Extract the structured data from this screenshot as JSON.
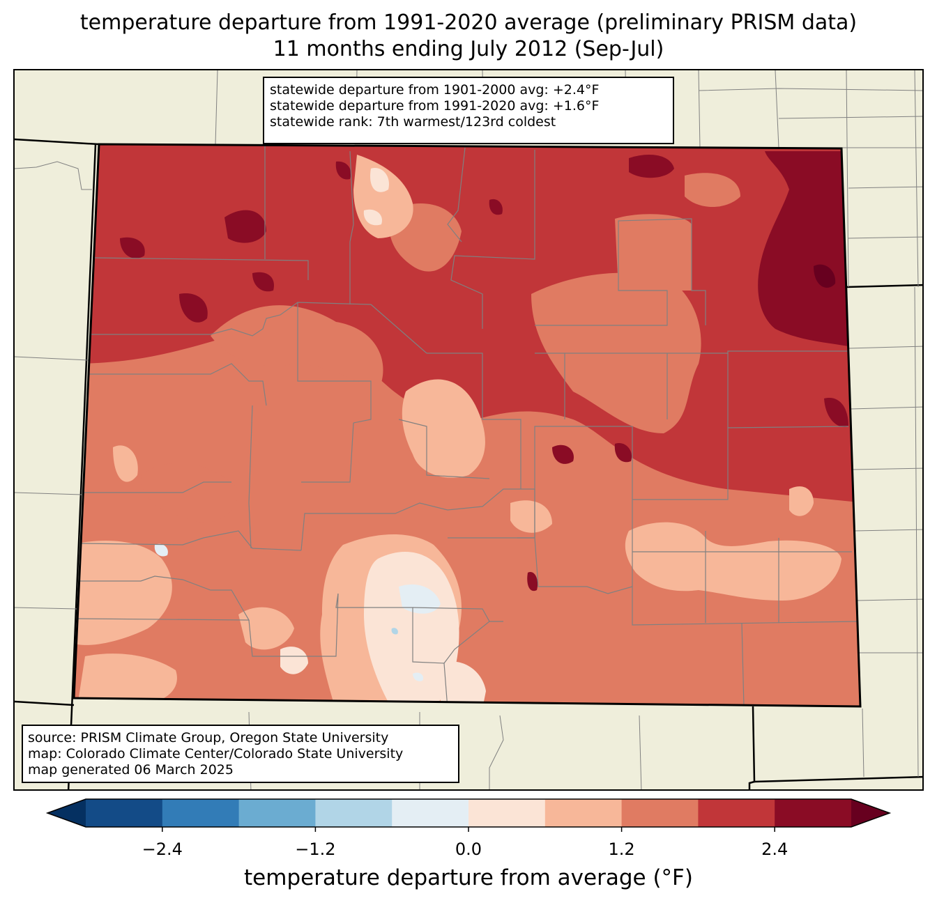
{
  "title": {
    "line1": "temperature departure from 1991-2020 average (preliminary PRISM data)",
    "line2": "11 months ending July 2012 (Sep-Jul)"
  },
  "stats": {
    "line1": "statewide departure from 1901-2000 avg: +2.4°F",
    "line2": "statewide departure from 1991-2020 avg: +1.6°F",
    "line3": "statewide rank: 7th warmest/123rd coldest"
  },
  "source": {
    "line1": "source: PRISM Climate Group, Oregon State University",
    "line2": "map: Colorado Climate Center/Colorado State University",
    "line3": "map generated 06 March 2025"
  },
  "colorbar": {
    "label": "temperature departure from average (°F)",
    "ticks": [
      "−2.4",
      "−1.2",
      "0.0",
      "1.2",
      "2.4"
    ],
    "tick_values": [
      -2.4,
      -1.2,
      0.0,
      1.2,
      2.4
    ],
    "bounds": [
      -3.0,
      -2.4,
      -1.8,
      -1.2,
      -0.6,
      0.0,
      0.6,
      1.2,
      1.8,
      2.4,
      3.0
    ],
    "colors": [
      "#134b87",
      "#327cb7",
      "#6bacd1",
      "#b1d5e7",
      "#e4eef4",
      "#fbe4d6",
      "#f7b799",
      "#e07b62",
      "#c13639",
      "#8a0c25"
    ],
    "under_color": "#053061",
    "over_color": "#67001f",
    "extend": "both"
  },
  "map": {
    "background_color": "#efeedb",
    "boundary_color": "#000000",
    "county_line_color": "#808080",
    "dominant_level": "1.8 to 2.4"
  }
}
